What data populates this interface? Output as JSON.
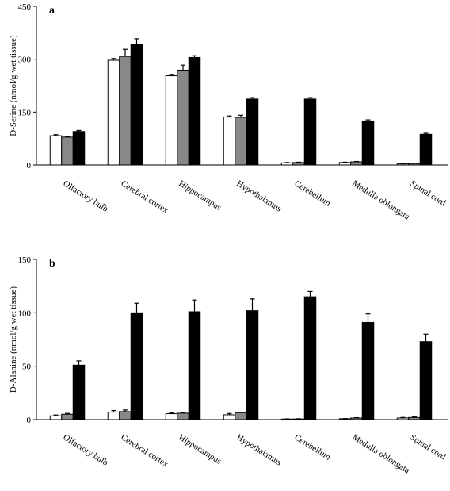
{
  "chart_data": [
    {
      "type": "bar",
      "panel_label": "a",
      "ylabel": "D-Serine (nmol/g wet tissue)",
      "ylim": [
        0,
        450
      ],
      "yticks": [
        0,
        150,
        300,
        450
      ],
      "categories": [
        "Olfactory bulb",
        "Cerebral cortex",
        "Hippocampus",
        "Hypothalamus",
        "Cerebellum",
        "Medulla oblongata",
        "Spinal cord"
      ],
      "series": [
        {
          "color": "#ffffff",
          "values": [
            83,
            297,
            253,
            136,
            6,
            7,
            3
          ],
          "errors": [
            3,
            5,
            4,
            3,
            1,
            1,
            1
          ]
        },
        {
          "color": "#888888",
          "values": [
            79,
            308,
            269,
            135,
            7,
            9,
            4
          ],
          "errors": [
            2,
            20,
            14,
            6,
            1,
            1,
            1
          ]
        },
        {
          "color": "#000000",
          "values": [
            95,
            343,
            305,
            187,
            187,
            125,
            87
          ],
          "errors": [
            3,
            15,
            5,
            4,
            4,
            3,
            3
          ]
        }
      ],
      "grid": false,
      "legend": "none"
    },
    {
      "type": "bar",
      "panel_label": "b",
      "ylabel": "D-Alanine (nmol/g wet tissue)",
      "ylim": [
        0,
        150
      ],
      "yticks": [
        0,
        50,
        100,
        150
      ],
      "categories": [
        "Olfactory bulb",
        "Cerebral cortex",
        "Hippocampus",
        "Hypothalamus",
        "Cerebellum",
        "Medulla oblongata",
        "Spinal cord"
      ],
      "series": [
        {
          "color": "#ffffff",
          "values": [
            3.5,
            7,
            5.5,
            4.5,
            0.5,
            0.8,
            1.5
          ],
          "errors": [
            0.8,
            1.5,
            0.8,
            1.2,
            0.2,
            0.2,
            0.5
          ]
        },
        {
          "color": "#888888",
          "values": [
            5,
            7.5,
            6,
            6.5,
            0.6,
            1.5,
            2
          ],
          "errors": [
            0.8,
            1.5,
            0.5,
            0.5,
            0.2,
            0.3,
            0.5
          ]
        },
        {
          "color": "#000000",
          "values": [
            51,
            100,
            101,
            102,
            115,
            91,
            73
          ],
          "errors": [
            4,
            9,
            11,
            11,
            5,
            8,
            7
          ]
        }
      ],
      "grid": false,
      "legend": "none"
    }
  ]
}
